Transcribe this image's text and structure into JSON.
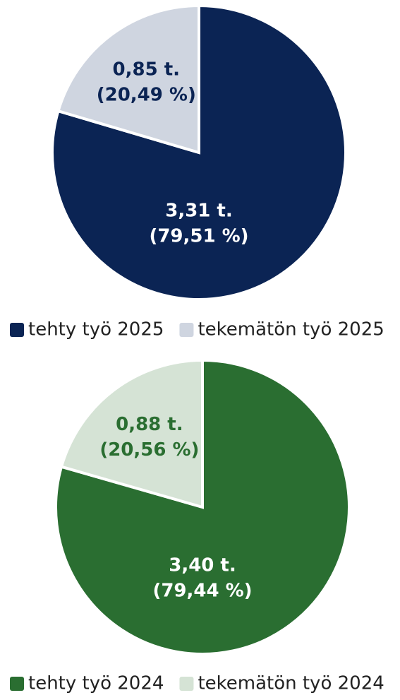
{
  "chart_data": [
    {
      "type": "pie",
      "categories": [
        "tehty työ 2025",
        "tekemätön työ 2025"
      ],
      "values": [
        3.31,
        0.85
      ],
      "value_labels": [
        "3,31 t.",
        "0,85 t."
      ],
      "percents": [
        79.51,
        20.49
      ],
      "percent_labels": [
        "(79,51 %)",
        "(20,49 %)"
      ],
      "colors": [
        "#0b2454",
        "#cfd5e0"
      ],
      "label_colors": [
        "#ffffff",
        "#0b2454"
      ]
    },
    {
      "type": "pie",
      "categories": [
        "tehty työ 2024",
        "tekemätön työ 2024"
      ],
      "values": [
        3.4,
        0.88
      ],
      "value_labels": [
        "3,40 t.",
        "0,88 t."
      ],
      "percents": [
        79.44,
        20.56
      ],
      "percent_labels": [
        "(79,44 %)",
        "(20,56 %)"
      ],
      "colors": [
        "#2a6e31",
        "#d5e3d5"
      ],
      "label_colors": [
        "#ffffff",
        "#2a6e31"
      ]
    }
  ]
}
